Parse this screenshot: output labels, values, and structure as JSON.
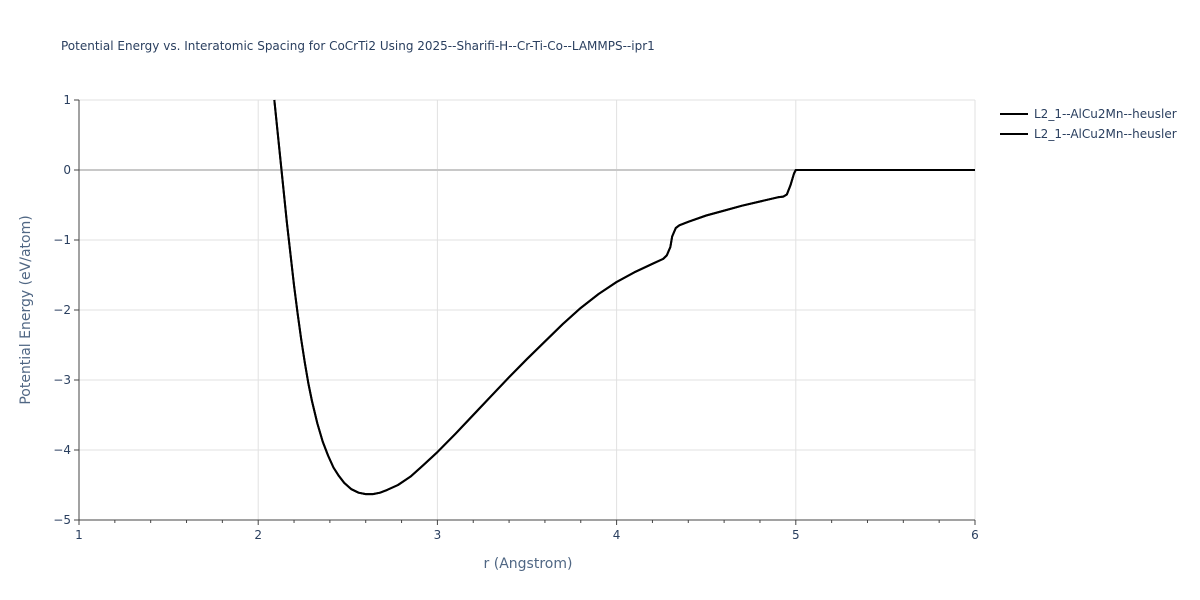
{
  "chart_data": {
    "type": "line",
    "title": "Potential Energy vs. Interatomic Spacing for CoCrTi2 Using 2025--Sharifi-H--Cr-Ti-Co--LAMMPS--ipr1",
    "xlabel": "r (Angstrom)",
    "ylabel": "Potential Energy (eV/atom)",
    "xlim": [
      1,
      6
    ],
    "ylim": [
      -5,
      1
    ],
    "xticks": [
      "1",
      "2",
      "3",
      "4",
      "5",
      "6"
    ],
    "yticks": [
      "1",
      "0",
      "−1",
      "−2",
      "−3",
      "−4",
      "−5"
    ],
    "xtick_values": [
      1,
      2,
      3,
      4,
      5,
      6
    ],
    "ytick_values": [
      1,
      0,
      -1,
      -2,
      -3,
      -4,
      -5
    ],
    "grid": true,
    "legend_position": "top-right",
    "series": [
      {
        "name": "L2_1--AlCu2Mn--heusler",
        "color": "#000000",
        "x": [
          2.09,
          2.1,
          2.12,
          2.14,
          2.16,
          2.18,
          2.2,
          2.22,
          2.24,
          2.26,
          2.28,
          2.3,
          2.33,
          2.36,
          2.39,
          2.42,
          2.45,
          2.48,
          2.52,
          2.56,
          2.6,
          2.64,
          2.68,
          2.72,
          2.78,
          2.85,
          2.92,
          3.0,
          3.1,
          3.2,
          3.3,
          3.4,
          3.5,
          3.6,
          3.7,
          3.8,
          3.9,
          4.0,
          4.1,
          4.2,
          4.26,
          4.28,
          4.3,
          4.31,
          4.33,
          4.35,
          4.4,
          4.5,
          4.6,
          4.7,
          4.8,
          4.9,
          4.93,
          4.95,
          4.97,
          4.99,
          5.0,
          5.2,
          5.5,
          6.0
        ],
        "y": [
          1.0,
          0.75,
          0.25,
          -0.25,
          -0.75,
          -1.2,
          -1.65,
          -2.05,
          -2.42,
          -2.75,
          -3.05,
          -3.3,
          -3.62,
          -3.88,
          -4.08,
          -4.25,
          -4.37,
          -4.47,
          -4.56,
          -4.61,
          -4.63,
          -4.63,
          -4.61,
          -4.57,
          -4.5,
          -4.38,
          -4.22,
          -4.03,
          -3.77,
          -3.5,
          -3.23,
          -2.96,
          -2.7,
          -2.45,
          -2.2,
          -1.97,
          -1.77,
          -1.6,
          -1.46,
          -1.34,
          -1.27,
          -1.22,
          -1.1,
          -0.95,
          -0.83,
          -0.79,
          -0.74,
          -0.65,
          -0.58,
          -0.51,
          -0.45,
          -0.39,
          -0.38,
          -0.35,
          -0.22,
          -0.05,
          0.0,
          0.0,
          0.0,
          0.0
        ]
      },
      {
        "name": "L2_1--AlCu2Mn--heusler",
        "color": "#000000",
        "x": [
          2.09,
          2.1,
          2.12,
          2.14,
          2.16,
          2.18,
          2.2,
          2.22,
          2.24,
          2.26,
          2.28,
          2.3,
          2.33,
          2.36,
          2.39,
          2.42,
          2.45,
          2.48,
          2.52,
          2.56,
          2.6,
          2.64,
          2.68,
          2.72,
          2.78,
          2.85,
          2.92,
          3.0,
          3.1,
          3.2,
          3.3,
          3.4,
          3.5,
          3.6,
          3.7,
          3.8,
          3.9,
          4.0,
          4.1,
          4.2,
          4.26,
          4.28,
          4.3,
          4.31,
          4.33,
          4.35,
          4.4,
          4.5,
          4.6,
          4.7,
          4.8,
          4.9,
          4.93,
          4.95,
          4.97,
          4.99,
          5.0,
          5.2,
          5.5,
          6.0
        ],
        "y": [
          1.0,
          0.75,
          0.25,
          -0.25,
          -0.75,
          -1.2,
          -1.65,
          -2.05,
          -2.42,
          -2.75,
          -3.05,
          -3.3,
          -3.62,
          -3.88,
          -4.08,
          -4.25,
          -4.37,
          -4.47,
          -4.56,
          -4.61,
          -4.63,
          -4.63,
          -4.61,
          -4.57,
          -4.5,
          -4.38,
          -4.22,
          -4.03,
          -3.77,
          -3.5,
          -3.23,
          -2.96,
          -2.7,
          -2.45,
          -2.2,
          -1.97,
          -1.77,
          -1.6,
          -1.46,
          -1.34,
          -1.27,
          -1.22,
          -1.1,
          -0.95,
          -0.83,
          -0.79,
          -0.74,
          -0.65,
          -0.58,
          -0.51,
          -0.45,
          -0.39,
          -0.38,
          -0.35,
          -0.22,
          -0.05,
          0.0,
          0.0,
          0.0,
          0.0
        ]
      }
    ]
  }
}
